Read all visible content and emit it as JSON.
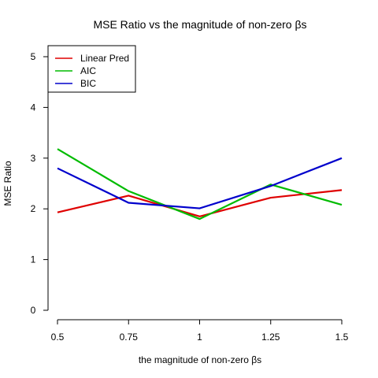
{
  "chart_data": {
    "type": "line",
    "title": "MSE Ratio vs the magnitude of non-zero βs",
    "xlabel": "the magnitude of non-zero βs",
    "ylabel": "MSE Ratio",
    "x": [
      0.5,
      0.75,
      1,
      1.25,
      1.5
    ],
    "x_tick_labels": [
      "0.5",
      "0.75",
      "1",
      "1.25",
      "1.5"
    ],
    "y_ticks": [
      0,
      1,
      2,
      3,
      4,
      5
    ],
    "y_tick_labels": [
      "0",
      "1",
      "2",
      "3",
      "4",
      "5"
    ],
    "xlim": [
      0.5,
      1.5
    ],
    "ylim": [
      0,
      5
    ],
    "grid": false,
    "legend_position": "top-left",
    "series": [
      {
        "name": "Linear Pred",
        "color": "#DF0000",
        "values": [
          1.93,
          2.26,
          1.85,
          2.22,
          2.37
        ]
      },
      {
        "name": "AIC",
        "color": "#00BB00",
        "values": [
          3.18,
          2.35,
          1.8,
          2.48,
          2.08
        ]
      },
      {
        "name": "BIC",
        "color": "#0000CC",
        "values": [
          2.8,
          2.12,
          2.01,
          2.45,
          3.0
        ]
      }
    ]
  }
}
